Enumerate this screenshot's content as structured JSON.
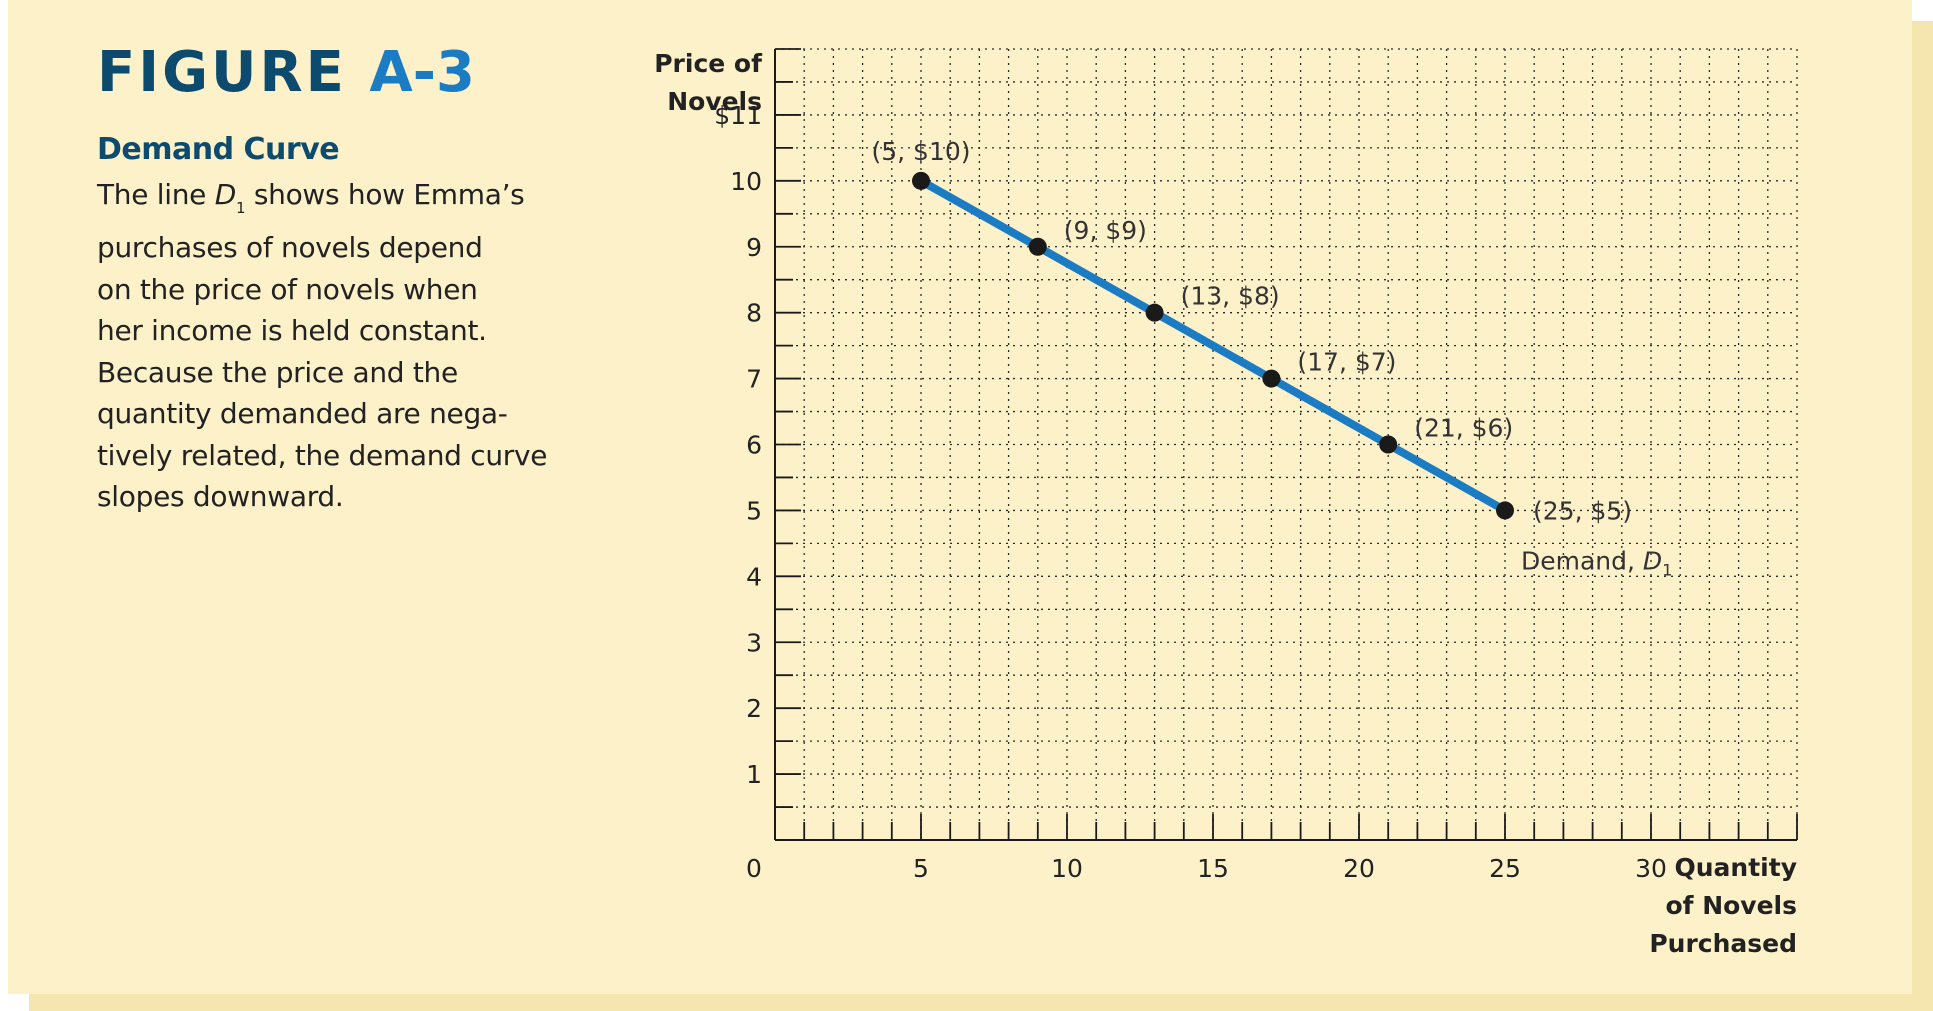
{
  "figure": {
    "label": "FIGURE",
    "number": "A-3",
    "subtitle": "Demand Curve",
    "description_lines": [
      {
        "before": "The line ",
        "italic": "D",
        "sub": "1",
        "after": " shows how Emma’s"
      },
      {
        "text": "purchases of novels depend"
      },
      {
        "text": "on the price of novels when"
      },
      {
        "text": "her income is held constant."
      },
      {
        "text": "Because the price and the"
      },
      {
        "text": "quantity demanded are nega-"
      },
      {
        "text": "tively related, the demand curve"
      },
      {
        "text": "slopes downward."
      }
    ]
  },
  "colors": {
    "panel": "#fdf1ca",
    "title_dark": "#0c4a6e",
    "title_accent": "#1b7cc4",
    "curve": "#1b7cc4",
    "points": "#1a1a1a"
  },
  "chart_data": {
    "type": "line",
    "ylabel": [
      "Price of",
      "Novels"
    ],
    "xlabel": [
      "Quantity",
      "of Novels",
      "Purchased"
    ],
    "xlim": [
      0,
      35
    ],
    "ylim": [
      0,
      12
    ],
    "grid": true,
    "y_ticks": [
      {
        "value": 11,
        "label": "$11"
      },
      {
        "value": 10,
        "label": "10"
      },
      {
        "value": 9,
        "label": "9"
      },
      {
        "value": 8,
        "label": "8"
      },
      {
        "value": 7,
        "label": "7"
      },
      {
        "value": 6,
        "label": "6"
      },
      {
        "value": 5,
        "label": "5"
      },
      {
        "value": 4,
        "label": "4"
      },
      {
        "value": 3,
        "label": "3"
      },
      {
        "value": 2,
        "label": "2"
      },
      {
        "value": 1,
        "label": "1"
      }
    ],
    "x_ticks": [
      {
        "value": 0,
        "label": "0"
      },
      {
        "value": 5,
        "label": "5"
      },
      {
        "value": 10,
        "label": "10"
      },
      {
        "value": 15,
        "label": "15"
      },
      {
        "value": 20,
        "label": "20"
      },
      {
        "value": 25,
        "label": "25"
      },
      {
        "value": 30,
        "label": "30"
      }
    ],
    "series": [
      {
        "label_text": "Demand, ",
        "label_italic": "D",
        "label_sub": "1",
        "points": [
          {
            "x": 5,
            "y": 10,
            "label": "(5, $10)"
          },
          {
            "x": 9,
            "y": 9,
            "label": "(9, $9)"
          },
          {
            "x": 13,
            "y": 8,
            "label": "(13, $8)"
          },
          {
            "x": 17,
            "y": 7,
            "label": "(17, $7)"
          },
          {
            "x": 21,
            "y": 6,
            "label": "(21, $6)"
          },
          {
            "x": 25,
            "y": 5,
            "label": "(25, $5)"
          }
        ]
      }
    ]
  }
}
